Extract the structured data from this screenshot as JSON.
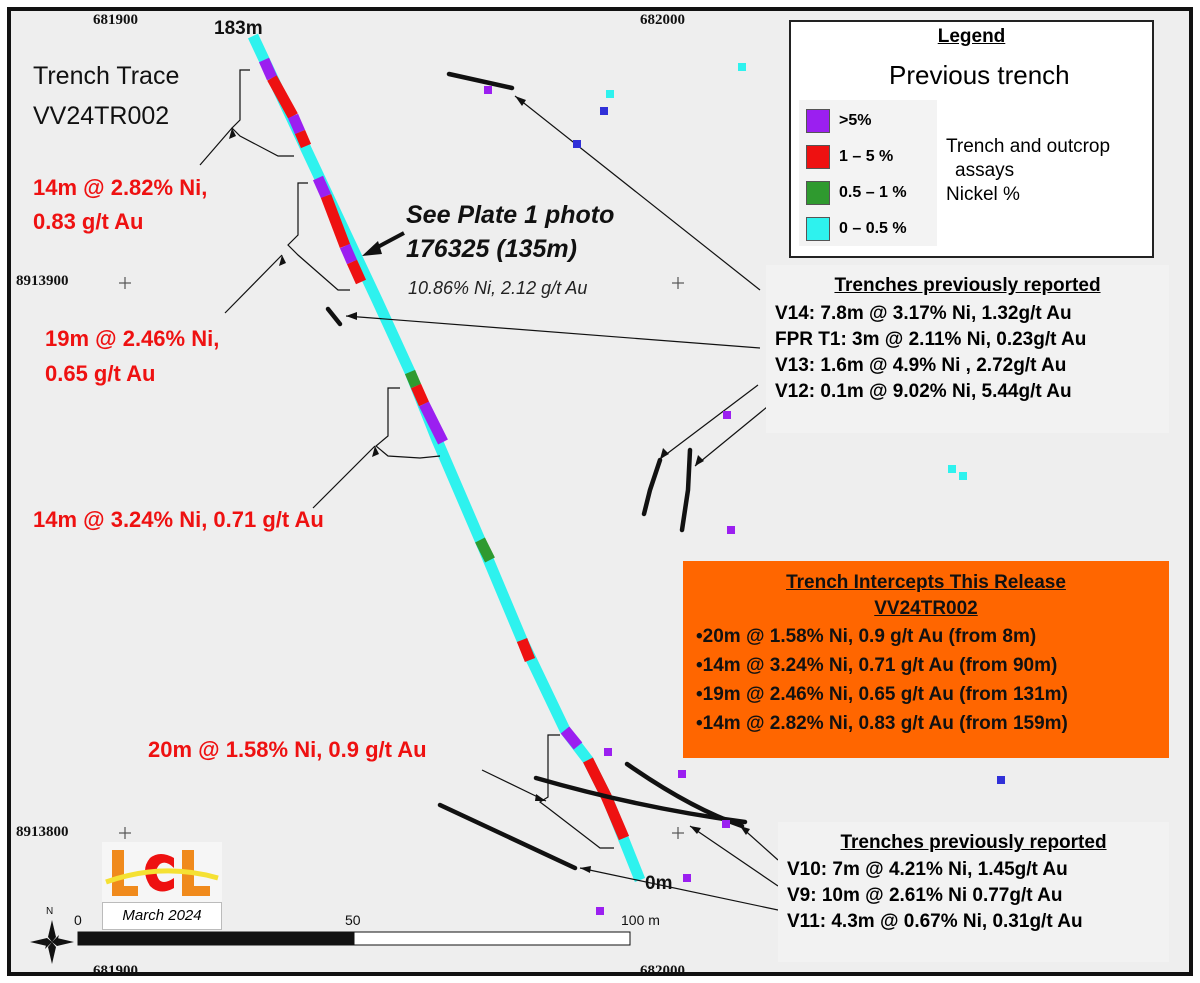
{
  "map": {
    "grid_labels": {
      "x_top_left": "681900",
      "x_top_right": "682000",
      "x_bottom_left": "681900",
      "x_bottom_right": "682000",
      "y_upper": "8913900",
      "y_lower": "8913800"
    },
    "trench_end_labels": {
      "top": "183m",
      "bottom": "0m"
    },
    "trench_title": {
      "line1": "Trench Trace",
      "line2": "VV24TR002"
    },
    "intercept_labels": [
      {
        "line1": "14m @ 2.82% Ni,",
        "line2": "0.83 g/t Au"
      },
      {
        "line1": "19m @ 2.46% Ni,",
        "line2": "0.65 g/t Au"
      },
      {
        "line1": "14m @ 3.24% Ni, 0.71 g/t Au"
      },
      {
        "line1": "20m @ 1.58% Ni, 0.9 g/t Au"
      }
    ],
    "plate_callout": {
      "line1": "See Plate 1 photo",
      "line2": "176325 (135m)",
      "sub": "10.86% Ni, 2.12 g/t Au"
    },
    "legend": {
      "title": "Legend",
      "previous_trench_label": "Previous trench",
      "classes": [
        {
          "label": ">5%",
          "color": "#9b1ff0"
        },
        {
          "label": "1 – 5 %",
          "color": "#ee1111"
        },
        {
          "label": "0.5 – 1 %",
          "color": "#2f9a2f"
        },
        {
          "label": "0 – 0.5 %",
          "color": "#2ef2ee"
        }
      ],
      "side_text": {
        "line1": "Trench and outcrop",
        "line2": "assays",
        "line3": "Nickel %"
      }
    },
    "previous_upper": {
      "title": "Trenches previously reported",
      "lines": [
        "V14: 7.8m @ 3.17% Ni, 1.32g/t Au",
        "FPR T1: 3m @ 2.11% Ni, 0.23g/t Au",
        "V13: 1.6m @ 4.9% Ni , 2.72g/t Au",
        "V12: 0.1m @ 9.02% Ni, 5.44g/t Au"
      ]
    },
    "release_box": {
      "title1": "Trench Intercepts This Release",
      "title2": "VV24TR002",
      "lines": [
        "•20m @ 1.58% Ni, 0.9 g/t Au (from 8m)",
        "•14m @ 3.24% Ni, 0.71 g/t Au (from 90m)",
        "•19m @ 2.46% Ni, 0.65 g/t Au (from 131m)",
        "•14m @ 2.82% Ni, 0.83 g/t Au (from 159m)"
      ],
      "color": "#ff6600"
    },
    "previous_lower": {
      "title": "Trenches previously reported",
      "lines": [
        "V10: 7m @ 4.21% Ni, 1.45g/t Au",
        "V9: 10m @ 2.61% Ni 0.77g/t Au",
        "V11: 4.3m @ 0.67% Ni, 0.31g/t Au"
      ]
    },
    "scale_bar": {
      "label_0": "0",
      "label_mid": "50",
      "label_end": "100 m"
    },
    "north_arrow": {
      "label": "N"
    },
    "logo": {
      "text": "LCL",
      "date": "March 2024"
    }
  }
}
